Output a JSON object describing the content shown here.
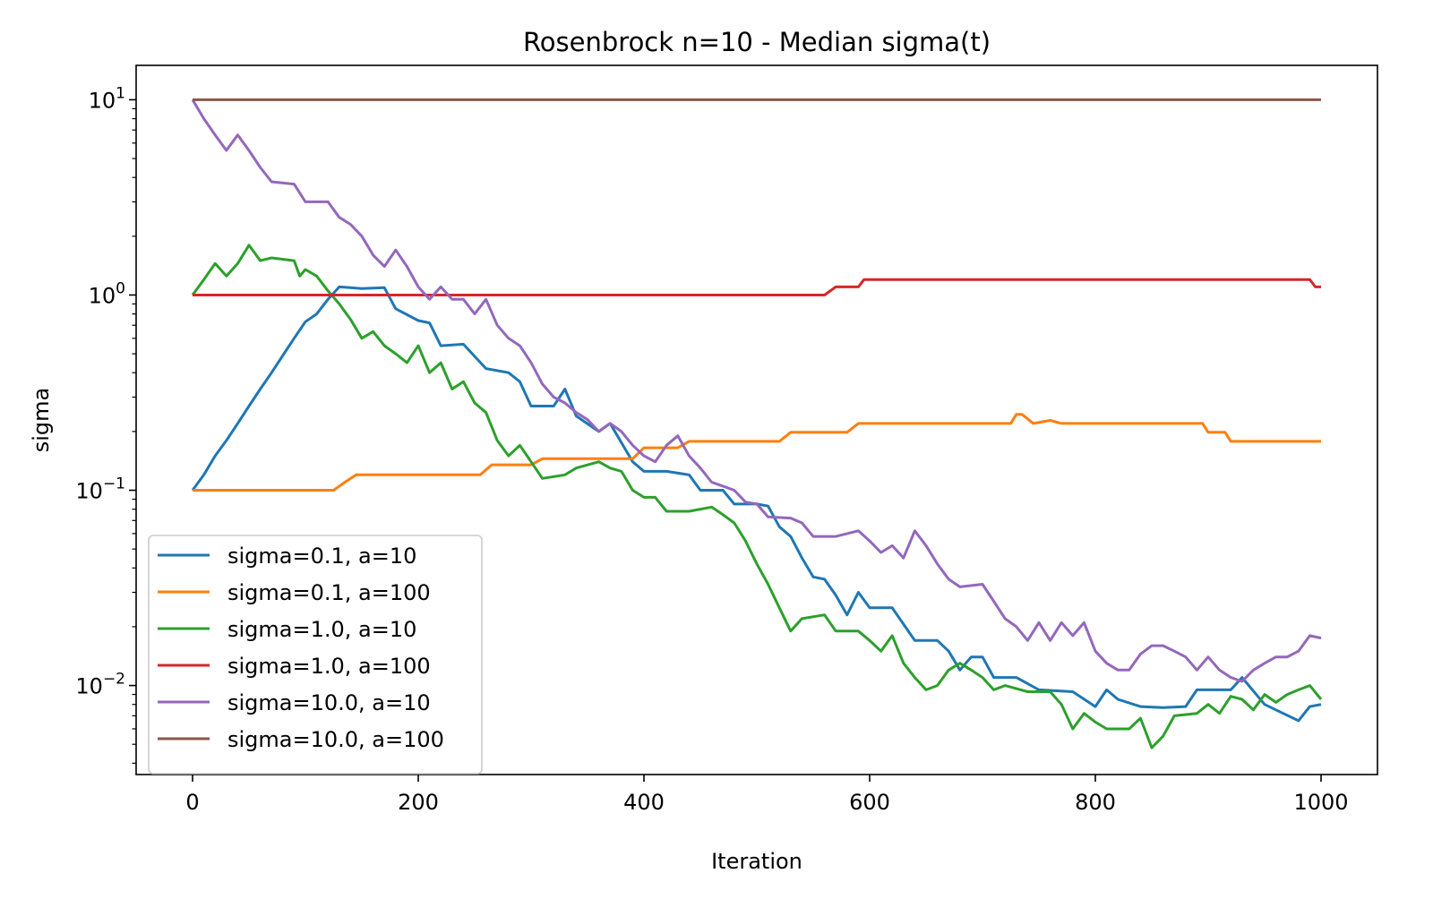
{
  "chart_data": {
    "type": "line",
    "title": "Rosenbrock n=10 - Median sigma(t)",
    "xlabel": "Iteration",
    "ylabel": "sigma",
    "xlim": [
      -50,
      1050
    ],
    "ylim": [
      0.0035,
      15
    ],
    "yscale": "log",
    "xticks": [
      0,
      200,
      400,
      600,
      800,
      1000
    ],
    "yticks": [
      {
        "value": 10,
        "base": "10",
        "exp": "1"
      },
      {
        "value": 1,
        "base": "10",
        "exp": "0"
      },
      {
        "value": 0.1,
        "base": "10",
        "exp": "−1"
      },
      {
        "value": 0.01,
        "base": "10",
        "exp": "−2"
      }
    ],
    "grid": false,
    "legend_position": "lower-left",
    "series": [
      {
        "name": "sigma=0.1, a=10",
        "color": "#1f77b4",
        "points": [
          [
            0,
            0.1
          ],
          [
            10,
            0.12
          ],
          [
            20,
            0.15
          ],
          [
            30,
            0.18
          ],
          [
            40,
            0.22
          ],
          [
            50,
            0.27
          ],
          [
            60,
            0.33
          ],
          [
            70,
            0.4
          ],
          [
            80,
            0.49
          ],
          [
            90,
            0.6
          ],
          [
            100,
            0.73
          ],
          [
            110,
            0.8
          ],
          [
            120,
            0.95
          ],
          [
            130,
            1.1
          ],
          [
            150,
            1.08
          ],
          [
            170,
            1.09
          ],
          [
            180,
            0.85
          ],
          [
            200,
            0.74
          ],
          [
            210,
            0.72
          ],
          [
            220,
            0.55
          ],
          [
            240,
            0.56
          ],
          [
            260,
            0.42
          ],
          [
            280,
            0.4
          ],
          [
            290,
            0.36
          ],
          [
            300,
            0.27
          ],
          [
            320,
            0.27
          ],
          [
            330,
            0.33
          ],
          [
            340,
            0.24
          ],
          [
            360,
            0.2
          ],
          [
            370,
            0.22
          ],
          [
            390,
            0.14
          ],
          [
            400,
            0.125
          ],
          [
            420,
            0.125
          ],
          [
            440,
            0.12
          ],
          [
            450,
            0.1
          ],
          [
            470,
            0.1
          ],
          [
            480,
            0.085
          ],
          [
            500,
            0.085
          ],
          [
            510,
            0.083
          ],
          [
            520,
            0.065
          ],
          [
            530,
            0.058
          ],
          [
            540,
            0.045
          ],
          [
            550,
            0.036
          ],
          [
            560,
            0.035
          ],
          [
            570,
            0.029
          ],
          [
            580,
            0.023
          ],
          [
            590,
            0.03
          ],
          [
            600,
            0.025
          ],
          [
            620,
            0.025
          ],
          [
            640,
            0.017
          ],
          [
            660,
            0.017
          ],
          [
            670,
            0.015
          ],
          [
            680,
            0.012
          ],
          [
            690,
            0.014
          ],
          [
            700,
            0.014
          ],
          [
            710,
            0.011
          ],
          [
            730,
            0.011
          ],
          [
            750,
            0.0095
          ],
          [
            780,
            0.0093
          ],
          [
            800,
            0.0078
          ],
          [
            810,
            0.0095
          ],
          [
            820,
            0.0085
          ],
          [
            840,
            0.0078
          ],
          [
            860,
            0.0077
          ],
          [
            880,
            0.0078
          ],
          [
            890,
            0.0095
          ],
          [
            910,
            0.0095
          ],
          [
            920,
            0.0095
          ],
          [
            930,
            0.011
          ],
          [
            950,
            0.008
          ],
          [
            960,
            0.0075
          ],
          [
            980,
            0.0066
          ],
          [
            990,
            0.0078
          ],
          [
            1000,
            0.008
          ]
        ]
      },
      {
        "name": "sigma=0.1, a=100",
        "color": "#ff7f0e",
        "points": [
          [
            0,
            0.1
          ],
          [
            125,
            0.1
          ],
          [
            135,
            0.11
          ],
          [
            145,
            0.12
          ],
          [
            200,
            0.12
          ],
          [
            255,
            0.12
          ],
          [
            265,
            0.135
          ],
          [
            300,
            0.135
          ],
          [
            310,
            0.145
          ],
          [
            390,
            0.145
          ],
          [
            400,
            0.165
          ],
          [
            430,
            0.165
          ],
          [
            440,
            0.178
          ],
          [
            520,
            0.178
          ],
          [
            530,
            0.198
          ],
          [
            580,
            0.198
          ],
          [
            590,
            0.22
          ],
          [
            725,
            0.22
          ],
          [
            730,
            0.245
          ],
          [
            735,
            0.245
          ],
          [
            745,
            0.22
          ],
          [
            760,
            0.228
          ],
          [
            770,
            0.22
          ],
          [
            895,
            0.22
          ],
          [
            900,
            0.198
          ],
          [
            915,
            0.198
          ],
          [
            920,
            0.178
          ],
          [
            1000,
            0.178
          ]
        ]
      },
      {
        "name": "sigma=1.0, a=10",
        "color": "#2ca02c",
        "points": [
          [
            0,
            1.0
          ],
          [
            10,
            1.2
          ],
          [
            20,
            1.45
          ],
          [
            30,
            1.25
          ],
          [
            40,
            1.45
          ],
          [
            50,
            1.8
          ],
          [
            60,
            1.5
          ],
          [
            70,
            1.55
          ],
          [
            90,
            1.5
          ],
          [
            95,
            1.25
          ],
          [
            100,
            1.35
          ],
          [
            110,
            1.25
          ],
          [
            120,
            1.05
          ],
          [
            130,
            0.9
          ],
          [
            140,
            0.75
          ],
          [
            150,
            0.6
          ],
          [
            160,
            0.65
          ],
          [
            170,
            0.55
          ],
          [
            180,
            0.5
          ],
          [
            190,
            0.45
          ],
          [
            200,
            0.55
          ],
          [
            210,
            0.4
          ],
          [
            220,
            0.45
          ],
          [
            230,
            0.33
          ],
          [
            240,
            0.36
          ],
          [
            250,
            0.28
          ],
          [
            260,
            0.25
          ],
          [
            270,
            0.18
          ],
          [
            280,
            0.15
          ],
          [
            290,
            0.17
          ],
          [
            300,
            0.14
          ],
          [
            310,
            0.115
          ],
          [
            330,
            0.12
          ],
          [
            340,
            0.13
          ],
          [
            360,
            0.14
          ],
          [
            370,
            0.13
          ],
          [
            380,
            0.125
          ],
          [
            390,
            0.1
          ],
          [
            400,
            0.092
          ],
          [
            410,
            0.092
          ],
          [
            420,
            0.078
          ],
          [
            440,
            0.078
          ],
          [
            460,
            0.082
          ],
          [
            470,
            0.075
          ],
          [
            480,
            0.068
          ],
          [
            490,
            0.055
          ],
          [
            500,
            0.042
          ],
          [
            510,
            0.033
          ],
          [
            520,
            0.025
          ],
          [
            530,
            0.019
          ],
          [
            540,
            0.022
          ],
          [
            560,
            0.023
          ],
          [
            570,
            0.019
          ],
          [
            590,
            0.019
          ],
          [
            600,
            0.017
          ],
          [
            610,
            0.015
          ],
          [
            620,
            0.018
          ],
          [
            630,
            0.013
          ],
          [
            640,
            0.011
          ],
          [
            650,
            0.0095
          ],
          [
            660,
            0.01
          ],
          [
            670,
            0.012
          ],
          [
            680,
            0.013
          ],
          [
            690,
            0.012
          ],
          [
            700,
            0.011
          ],
          [
            710,
            0.0095
          ],
          [
            720,
            0.01
          ],
          [
            740,
            0.0093
          ],
          [
            760,
            0.0093
          ],
          [
            770,
            0.008
          ],
          [
            780,
            0.006
          ],
          [
            790,
            0.0072
          ],
          [
            800,
            0.0065
          ],
          [
            810,
            0.006
          ],
          [
            830,
            0.006
          ],
          [
            840,
            0.0068
          ],
          [
            850,
            0.0048
          ],
          [
            860,
            0.0055
          ],
          [
            870,
            0.007
          ],
          [
            890,
            0.0072
          ],
          [
            900,
            0.008
          ],
          [
            910,
            0.0072
          ],
          [
            920,
            0.0088
          ],
          [
            930,
            0.0085
          ],
          [
            940,
            0.0075
          ],
          [
            950,
            0.009
          ],
          [
            960,
            0.0082
          ],
          [
            970,
            0.009
          ],
          [
            980,
            0.0095
          ],
          [
            990,
            0.01
          ],
          [
            1000,
            0.0085
          ]
        ]
      },
      {
        "name": "sigma=1.0, a=100",
        "color": "#d62728",
        "points": [
          [
            0,
            1.0
          ],
          [
            560,
            1.0
          ],
          [
            570,
            1.1
          ],
          [
            590,
            1.1
          ],
          [
            595,
            1.2
          ],
          [
            600,
            1.2
          ],
          [
            990,
            1.2
          ],
          [
            995,
            1.1
          ],
          [
            1000,
            1.1
          ]
        ]
      },
      {
        "name": "sigma=10.0, a=10",
        "color": "#9467bd",
        "points": [
          [
            0,
            10.0
          ],
          [
            10,
            8.0
          ],
          [
            20,
            6.6
          ],
          [
            30,
            5.5
          ],
          [
            40,
            6.6
          ],
          [
            50,
            5.5
          ],
          [
            60,
            4.5
          ],
          [
            70,
            3.8
          ],
          [
            90,
            3.7
          ],
          [
            100,
            3.0
          ],
          [
            120,
            3.0
          ],
          [
            130,
            2.5
          ],
          [
            140,
            2.3
          ],
          [
            150,
            2.0
          ],
          [
            160,
            1.6
          ],
          [
            170,
            1.4
          ],
          [
            180,
            1.7
          ],
          [
            190,
            1.4
          ],
          [
            200,
            1.1
          ],
          [
            210,
            0.95
          ],
          [
            220,
            1.1
          ],
          [
            230,
            0.95
          ],
          [
            240,
            0.95
          ],
          [
            250,
            0.8
          ],
          [
            260,
            0.95
          ],
          [
            270,
            0.7
          ],
          [
            280,
            0.6
          ],
          [
            290,
            0.55
          ],
          [
            300,
            0.45
          ],
          [
            310,
            0.35
          ],
          [
            320,
            0.3
          ],
          [
            330,
            0.28
          ],
          [
            340,
            0.25
          ],
          [
            350,
            0.23
          ],
          [
            360,
            0.2
          ],
          [
            370,
            0.22
          ],
          [
            380,
            0.2
          ],
          [
            390,
            0.17
          ],
          [
            400,
            0.15
          ],
          [
            410,
            0.14
          ],
          [
            420,
            0.17
          ],
          [
            430,
            0.19
          ],
          [
            440,
            0.15
          ],
          [
            450,
            0.13
          ],
          [
            460,
            0.11
          ],
          [
            470,
            0.105
          ],
          [
            480,
            0.1
          ],
          [
            490,
            0.087
          ],
          [
            500,
            0.085
          ],
          [
            510,
            0.073
          ],
          [
            530,
            0.072
          ],
          [
            540,
            0.068
          ],
          [
            550,
            0.058
          ],
          [
            570,
            0.058
          ],
          [
            590,
            0.062
          ],
          [
            600,
            0.055
          ],
          [
            610,
            0.048
          ],
          [
            620,
            0.052
          ],
          [
            630,
            0.045
          ],
          [
            640,
            0.062
          ],
          [
            650,
            0.052
          ],
          [
            660,
            0.042
          ],
          [
            670,
            0.035
          ],
          [
            680,
            0.032
          ],
          [
            700,
            0.033
          ],
          [
            710,
            0.027
          ],
          [
            720,
            0.022
          ],
          [
            730,
            0.02
          ],
          [
            740,
            0.017
          ],
          [
            750,
            0.021
          ],
          [
            760,
            0.017
          ],
          [
            770,
            0.021
          ],
          [
            780,
            0.018
          ],
          [
            790,
            0.021
          ],
          [
            800,
            0.015
          ],
          [
            810,
            0.013
          ],
          [
            820,
            0.012
          ],
          [
            830,
            0.012
          ],
          [
            840,
            0.0145
          ],
          [
            850,
            0.016
          ],
          [
            860,
            0.016
          ],
          [
            870,
            0.015
          ],
          [
            880,
            0.014
          ],
          [
            890,
            0.012
          ],
          [
            900,
            0.014
          ],
          [
            910,
            0.012
          ],
          [
            920,
            0.011
          ],
          [
            930,
            0.0105
          ],
          [
            940,
            0.012
          ],
          [
            950,
            0.013
          ],
          [
            960,
            0.014
          ],
          [
            970,
            0.014
          ],
          [
            980,
            0.015
          ],
          [
            990,
            0.018
          ],
          [
            1000,
            0.0175
          ]
        ]
      },
      {
        "name": "sigma=10.0, a=100",
        "color": "#8c564b",
        "points": [
          [
            0,
            10.0
          ],
          [
            1000,
            10.0
          ]
        ]
      }
    ]
  }
}
